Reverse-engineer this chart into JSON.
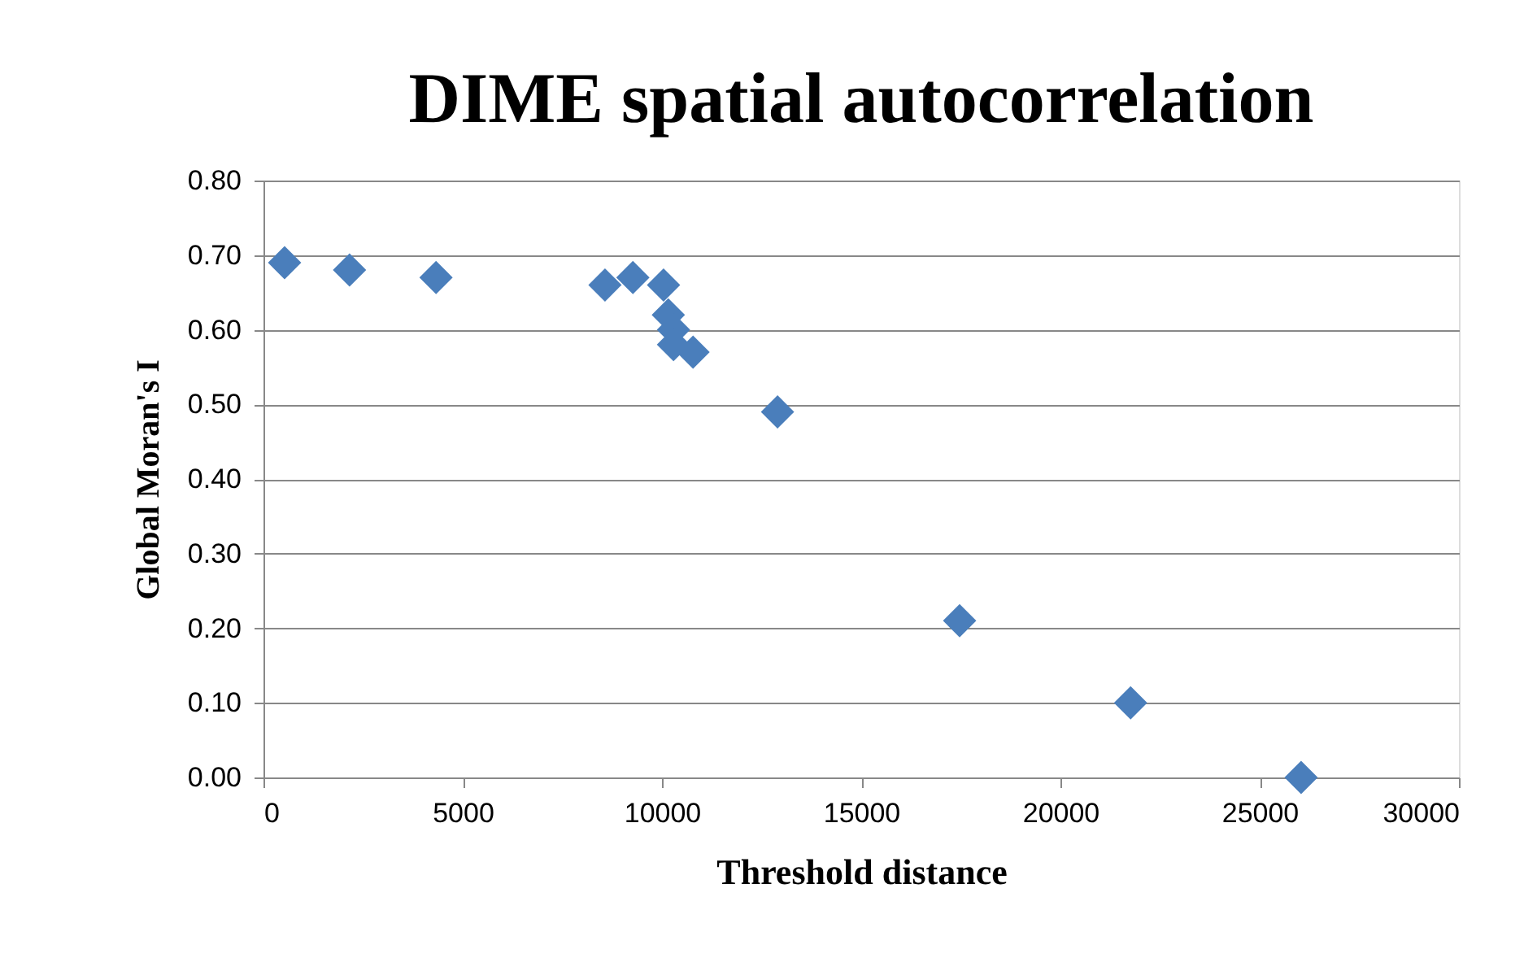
{
  "chart_data": {
    "type": "scatter",
    "title": "DIME spatial autocorrelation",
    "xlabel": "Threshold distance",
    "ylabel": "Global Moran's I",
    "x": [
      530,
      2160,
      4330,
      8570,
      9270,
      10040,
      10160,
      10290,
      10290,
      10780,
      12900,
      17470,
      21760,
      26040
    ],
    "series": [
      {
        "color": "#4a7ebb",
        "values": [
          0.69,
          0.68,
          0.67,
          0.66,
          0.67,
          0.66,
          0.62,
          0.6,
          0.58,
          0.57,
          0.49,
          0.21,
          0.1,
          0.0
        ]
      }
    ],
    "xlim": [
      0,
      30000
    ],
    "xticks": [
      0,
      5000,
      10000,
      15000,
      20000,
      25000,
      30000
    ],
    "ylim": [
      0,
      0.8
    ],
    "yticks": [
      {
        "value": 0,
        "label": "0.00"
      },
      {
        "value": 0.1,
        "label": "0.10"
      },
      {
        "value": 0.2,
        "label": "0.20"
      },
      {
        "value": 0.3,
        "label": "0.30"
      },
      {
        "value": 0.4,
        "label": "0.40"
      },
      {
        "value": 0.5,
        "label": "0.50"
      },
      {
        "value": 0.6,
        "label": "0.60"
      },
      {
        "value": 0.7,
        "label": "0.70"
      },
      {
        "value": 0.8,
        "label": "0.80"
      }
    ],
    "grid": "y",
    "marker": "diamond"
  }
}
